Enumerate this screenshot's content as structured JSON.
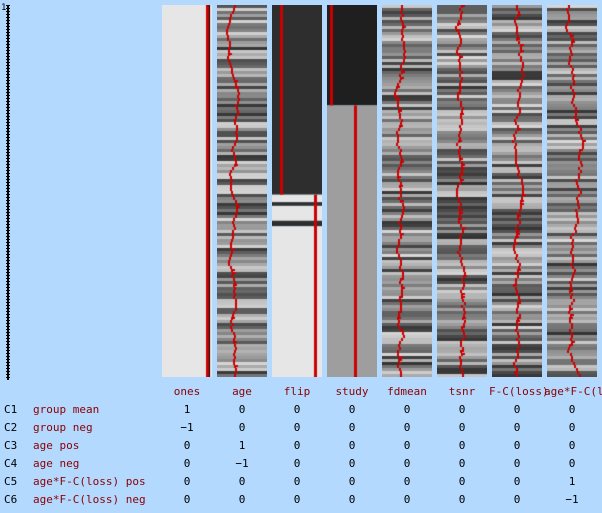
{
  "design": {
    "axis_label": "1",
    "columns": [
      {
        "id": "ones",
        "label": "ones",
        "pattern": "constant",
        "shade": 0.9,
        "line": 0.92
      },
      {
        "id": "age",
        "label": "age",
        "pattern": "noise",
        "seed": 3,
        "line": 0.35,
        "wiggle": 0.12
      },
      {
        "id": "flip",
        "label": "flip",
        "pattern": "blocks",
        "segments": [
          [
            0,
            0.51,
            0.18
          ],
          [
            0.51,
            0.53,
            0.9
          ],
          [
            0.53,
            0.54,
            0.18
          ],
          [
            0.54,
            0.58,
            0.9
          ],
          [
            0.58,
            0.595,
            0.18
          ],
          [
            0.595,
            1,
            0.9
          ]
        ],
        "line": 0.15,
        "line2": 0.9
      },
      {
        "id": "study",
        "label": "study",
        "pattern": "blocks",
        "segments": [
          [
            0,
            0.27,
            0.12
          ],
          [
            0.27,
            1,
            0.62
          ]
        ],
        "line": 0.05,
        "line2": 0.6
      },
      {
        "id": "fdmean",
        "label": "fdmean",
        "pattern": "noise",
        "seed": 11,
        "line": 0.4,
        "wiggle": 0.14
      },
      {
        "id": "tsnr",
        "label": "tsnr",
        "pattern": "noise",
        "seed": 21,
        "line": 0.5,
        "wiggle": 0.15
      },
      {
        "id": "fc_loss",
        "label": "F-C(loss)",
        "pattern": "noise",
        "seed": 31,
        "line": 0.5,
        "wiggle": 0.17
      },
      {
        "id": "age_fc_loss",
        "label": "age*F-C(loss)",
        "pattern": "noise",
        "seed": 41,
        "line": 0.45,
        "wiggle": 0.18
      }
    ],
    "contrasts": [
      {
        "id": "C1",
        "label": "group mean",
        "values": [
          "1",
          "0",
          "0",
          "0",
          "0",
          "0",
          "0",
          "0"
        ]
      },
      {
        "id": "C2",
        "label": "group neg",
        "values": [
          "−1",
          "0",
          "0",
          "0",
          "0",
          "0",
          "0",
          "0"
        ]
      },
      {
        "id": "C3",
        "label": "age pos",
        "values": [
          "0",
          "1",
          "0",
          "0",
          "0",
          "0",
          "0",
          "0"
        ]
      },
      {
        "id": "C4",
        "label": "age neg",
        "values": [
          "0",
          "−1",
          "0",
          "0",
          "0",
          "0",
          "0",
          "0"
        ]
      },
      {
        "id": "C5",
        "label": "age*F-C(loss) pos",
        "values": [
          "0",
          "0",
          "0",
          "0",
          "0",
          "0",
          "0",
          "1"
        ]
      },
      {
        "id": "C6",
        "label": "age*F-C(loss) neg",
        "values": [
          "0",
          "0",
          "0",
          "0",
          "0",
          "0",
          "0",
          "−1"
        ]
      }
    ]
  }
}
